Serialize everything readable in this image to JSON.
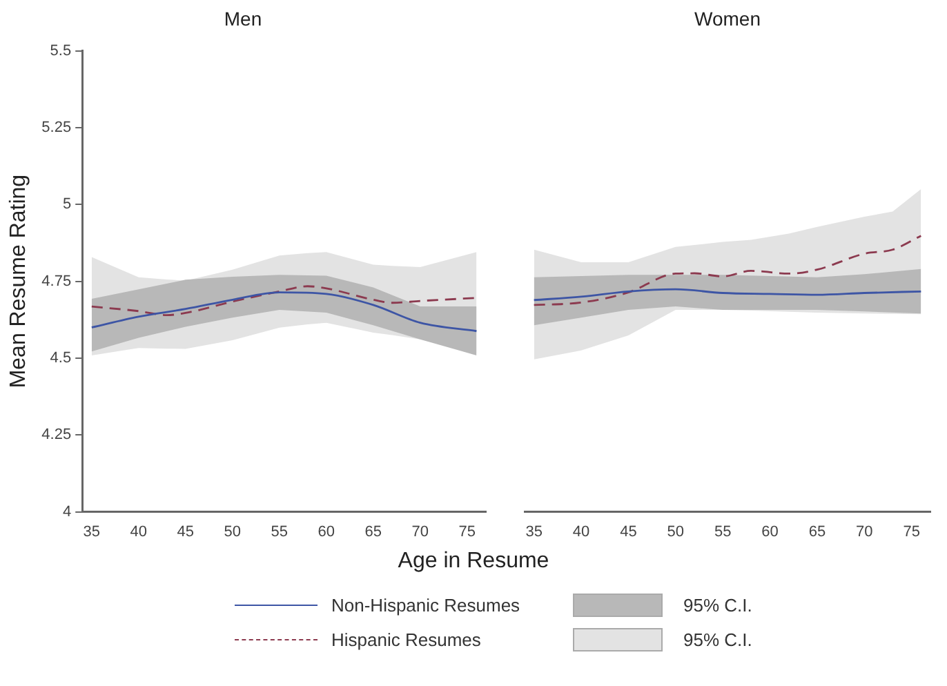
{
  "chart_data": [
    {
      "type": "line",
      "title": "Men",
      "xlabel": "Age in Resume",
      "ylabel": "Mean Resume Rating",
      "xlim": [
        34,
        77
      ],
      "xticks": [
        35,
        40,
        45,
        50,
        55,
        60,
        65,
        70,
        75
      ],
      "ylim": [
        4,
        5.5
      ],
      "yticks": [
        4,
        4.25,
        4.5,
        4.75,
        5,
        5.25,
        5.5
      ],
      "grid": false,
      "legend": "bottom",
      "marker": "none",
      "annotations": [
        "95% C.I.",
        "95% C.I."
      ],
      "series": [
        {
          "name": "Non-Hispanic Resumes",
          "color": "#3d55a5",
          "line_style": "solid",
          "x": [
            35,
            40,
            45,
            50,
            55,
            60,
            65,
            70,
            76
          ],
          "values": [
            4.6,
            4.635,
            4.66,
            4.69,
            4.714,
            4.709,
            4.673,
            4.615,
            4.588
          ],
          "lower": [
            4.522,
            4.566,
            4.602,
            4.632,
            4.657,
            4.648,
            4.607,
            4.561,
            4.509
          ],
          "upper": [
            4.693,
            4.724,
            4.755,
            4.765,
            4.771,
            4.768,
            4.73,
            4.668,
            4.668
          ]
        },
        {
          "name": "Hispanic Resumes",
          "color": "#8c3a4f",
          "line_style": "dashed",
          "x": [
            35,
            40,
            43,
            45,
            50,
            55,
            58,
            60,
            65,
            67,
            70,
            76
          ],
          "values": [
            4.668,
            4.653,
            4.64,
            4.647,
            4.684,
            4.717,
            4.734,
            4.727,
            4.69,
            4.68,
            4.686,
            4.696
          ],
          "lower": [
            4.509,
            4.533,
            4.531,
            4.53,
            4.558,
            4.599,
            4.61,
            4.615,
            4.583,
            4.575,
            4.561,
            4.517
          ],
          "upper": [
            4.829,
            4.763,
            4.756,
            4.752,
            4.788,
            4.834,
            4.842,
            4.845,
            4.804,
            4.8,
            4.796,
            4.845
          ]
        }
      ]
    },
    {
      "type": "line",
      "title": "Women",
      "xlim": [
        34,
        77
      ],
      "xticks": [
        35,
        40,
        45,
        50,
        55,
        60,
        65,
        70,
        75
      ],
      "ylim": [
        4,
        5.5
      ],
      "yticks": [
        4,
        4.25,
        4.5,
        4.75,
        5,
        5.25,
        5.5
      ],
      "tick_labels": "x",
      "grid": false,
      "marker": "none",
      "series": [
        {
          "color": "#3d55a5",
          "line_style": "solid",
          "x": [
            35,
            40,
            45,
            50,
            55,
            60,
            65,
            70,
            76
          ],
          "values": [
            4.689,
            4.7,
            4.717,
            4.724,
            4.712,
            4.709,
            4.706,
            4.712,
            4.717
          ],
          "lower": [
            4.607,
            4.632,
            4.657,
            4.668,
            4.657,
            4.657,
            4.657,
            4.652,
            4.645
          ],
          "upper": [
            4.763,
            4.767,
            4.771,
            4.771,
            4.771,
            4.767,
            4.763,
            4.773,
            4.79
          ]
        },
        {
          "color": "#8c3a4f",
          "line_style": "dashed",
          "x": [
            35,
            40,
            45,
            50,
            52,
            55,
            58,
            62,
            65,
            70,
            73,
            76
          ],
          "values": [
            4.673,
            4.681,
            4.714,
            4.775,
            4.776,
            4.766,
            4.784,
            4.775,
            4.788,
            4.84,
            4.853,
            4.898
          ],
          "lower": [
            4.496,
            4.525,
            4.574,
            4.657,
            4.657,
            4.657,
            4.655,
            4.651,
            4.648,
            4.645,
            4.644,
            4.643
          ],
          "upper": [
            4.853,
            4.812,
            4.812,
            4.862,
            4.868,
            4.878,
            4.885,
            4.905,
            4.927,
            4.96,
            4.977,
            5.05
          ]
        }
      ]
    }
  ]
}
